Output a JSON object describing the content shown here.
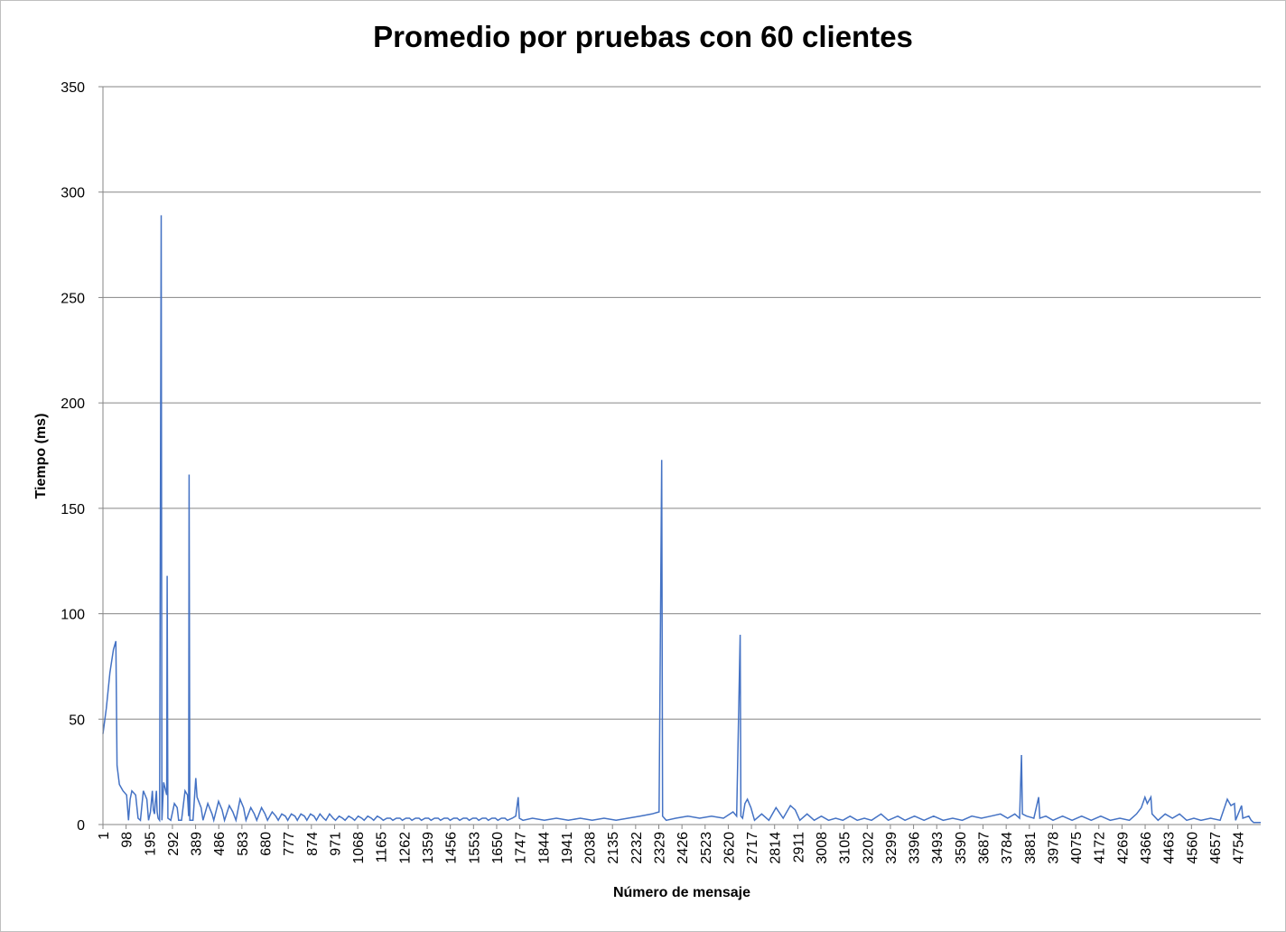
{
  "chart_data": {
    "type": "line",
    "title": "Promedio por pruebas con 60 clientes",
    "xlabel": "Número de mensaje",
    "ylabel": "Tiempo (ms)",
    "ylim": [
      0,
      350
    ],
    "xlim": [
      1,
      4850
    ],
    "y_ticks": [
      "0",
      "50",
      "100",
      "150",
      "200",
      "250",
      "300",
      "350"
    ],
    "x_ticks": [
      "1",
      "98",
      "195",
      "292",
      "389",
      "486",
      "583",
      "680",
      "777",
      "874",
      "971",
      "1068",
      "1165",
      "1262",
      "1359",
      "1456",
      "1553",
      "1650",
      "1747",
      "1844",
      "1941",
      "2038",
      "2135",
      "2232",
      "2329",
      "2426",
      "2523",
      "2620",
      "2717",
      "2814",
      "2911",
      "3008",
      "3105",
      "3202",
      "3299",
      "3396",
      "3493",
      "3590",
      "3687",
      "3784",
      "3881",
      "3978",
      "4075",
      "4172",
      "4269",
      "4366",
      "4463",
      "4560",
      "4657",
      "4754"
    ],
    "grid": true,
    "legend": "none",
    "series": [
      {
        "color": "#4472c4",
        "points": [
          [
            1,
            43
          ],
          [
            15,
            55
          ],
          [
            30,
            72
          ],
          [
            45,
            83
          ],
          [
            55,
            87
          ],
          [
            60,
            28
          ],
          [
            70,
            19
          ],
          [
            85,
            16
          ],
          [
            100,
            14
          ],
          [
            108,
            2
          ],
          [
            115,
            12
          ],
          [
            122,
            16
          ],
          [
            138,
            14
          ],
          [
            148,
            3
          ],
          [
            158,
            2
          ],
          [
            170,
            16
          ],
          [
            185,
            12
          ],
          [
            192,
            2
          ],
          [
            200,
            6
          ],
          [
            208,
            16
          ],
          [
            212,
            7
          ],
          [
            217,
            5
          ],
          [
            220,
            10
          ],
          [
            225,
            16
          ],
          [
            228,
            6
          ],
          [
            232,
            3
          ],
          [
            238,
            2
          ],
          [
            245,
            289
          ],
          [
            248,
            2
          ],
          [
            255,
            20
          ],
          [
            268,
            14
          ],
          [
            270,
            118
          ],
          [
            273,
            3
          ],
          [
            285,
            2
          ],
          [
            300,
            10
          ],
          [
            312,
            8
          ],
          [
            318,
            2
          ],
          [
            330,
            2
          ],
          [
            345,
            16
          ],
          [
            355,
            14
          ],
          [
            360,
            4
          ],
          [
            362,
            166
          ],
          [
            365,
            2
          ],
          [
            378,
            2
          ],
          [
            390,
            22
          ],
          [
            395,
            13
          ],
          [
            412,
            8
          ],
          [
            420,
            2
          ],
          [
            440,
            10
          ],
          [
            458,
            5
          ],
          [
            465,
            2
          ],
          [
            485,
            11
          ],
          [
            500,
            7
          ],
          [
            510,
            2
          ],
          [
            530,
            9
          ],
          [
            545,
            6
          ],
          [
            558,
            2
          ],
          [
            575,
            12
          ],
          [
            590,
            8
          ],
          [
            600,
            2
          ],
          [
            620,
            8
          ],
          [
            635,
            5
          ],
          [
            645,
            2
          ],
          [
            665,
            8
          ],
          [
            680,
            5
          ],
          [
            690,
            2
          ],
          [
            710,
            6
          ],
          [
            725,
            4
          ],
          [
            735,
            2
          ],
          [
            750,
            5
          ],
          [
            765,
            4
          ],
          [
            775,
            2
          ],
          [
            790,
            5
          ],
          [
            805,
            4
          ],
          [
            815,
            2
          ],
          [
            830,
            5
          ],
          [
            845,
            4
          ],
          [
            855,
            2
          ],
          [
            870,
            5
          ],
          [
            885,
            4
          ],
          [
            895,
            2
          ],
          [
            910,
            5
          ],
          [
            925,
            3
          ],
          [
            935,
            2
          ],
          [
            950,
            5
          ],
          [
            965,
            3
          ],
          [
            975,
            2
          ],
          [
            990,
            4
          ],
          [
            1005,
            3
          ],
          [
            1015,
            2
          ],
          [
            1030,
            4
          ],
          [
            1045,
            3
          ],
          [
            1055,
            2
          ],
          [
            1070,
            4
          ],
          [
            1085,
            3
          ],
          [
            1095,
            2
          ],
          [
            1110,
            4
          ],
          [
            1125,
            3
          ],
          [
            1135,
            2
          ],
          [
            1150,
            4
          ],
          [
            1165,
            3
          ],
          [
            1175,
            2
          ],
          [
            1190,
            3
          ],
          [
            1205,
            3
          ],
          [
            1215,
            2
          ],
          [
            1230,
            3
          ],
          [
            1245,
            3
          ],
          [
            1255,
            2
          ],
          [
            1270,
            3
          ],
          [
            1285,
            3
          ],
          [
            1295,
            2
          ],
          [
            1310,
            3
          ],
          [
            1325,
            3
          ],
          [
            1335,
            2
          ],
          [
            1350,
            3
          ],
          [
            1365,
            3
          ],
          [
            1375,
            2
          ],
          [
            1390,
            3
          ],
          [
            1405,
            3
          ],
          [
            1415,
            2
          ],
          [
            1430,
            3
          ],
          [
            1445,
            3
          ],
          [
            1455,
            2
          ],
          [
            1470,
            3
          ],
          [
            1485,
            3
          ],
          [
            1495,
            2
          ],
          [
            1510,
            3
          ],
          [
            1525,
            3
          ],
          [
            1535,
            2
          ],
          [
            1550,
            3
          ],
          [
            1565,
            3
          ],
          [
            1575,
            2
          ],
          [
            1590,
            3
          ],
          [
            1605,
            3
          ],
          [
            1615,
            2
          ],
          [
            1630,
            3
          ],
          [
            1645,
            3
          ],
          [
            1655,
            2
          ],
          [
            1670,
            3
          ],
          [
            1685,
            3
          ],
          [
            1695,
            2
          ],
          [
            1715,
            3
          ],
          [
            1730,
            4
          ],
          [
            1740,
            13
          ],
          [
            1745,
            3
          ],
          [
            1760,
            2
          ],
          [
            1800,
            3
          ],
          [
            1850,
            2
          ],
          [
            1900,
            3
          ],
          [
            1950,
            2
          ],
          [
            2000,
            3
          ],
          [
            2050,
            2
          ],
          [
            2100,
            3
          ],
          [
            2150,
            2
          ],
          [
            2200,
            3
          ],
          [
            2250,
            4
          ],
          [
            2300,
            5
          ],
          [
            2330,
            6
          ],
          [
            2341,
            173
          ],
          [
            2345,
            4
          ],
          [
            2360,
            2
          ],
          [
            2400,
            3
          ],
          [
            2450,
            4
          ],
          [
            2500,
            3
          ],
          [
            2550,
            4
          ],
          [
            2600,
            3
          ],
          [
            2640,
            6
          ],
          [
            2655,
            4
          ],
          [
            2670,
            90
          ],
          [
            2673,
            4
          ],
          [
            2680,
            3
          ],
          [
            2690,
            10
          ],
          [
            2700,
            12
          ],
          [
            2715,
            8
          ],
          [
            2730,
            2
          ],
          [
            2760,
            5
          ],
          [
            2790,
            2
          ],
          [
            2820,
            8
          ],
          [
            2850,
            3
          ],
          [
            2880,
            9
          ],
          [
            2900,
            7
          ],
          [
            2920,
            2
          ],
          [
            2950,
            5
          ],
          [
            2980,
            2
          ],
          [
            3010,
            4
          ],
          [
            3040,
            2
          ],
          [
            3070,
            3
          ],
          [
            3100,
            2
          ],
          [
            3130,
            4
          ],
          [
            3160,
            2
          ],
          [
            3190,
            3
          ],
          [
            3220,
            2
          ],
          [
            3260,
            5
          ],
          [
            3290,
            2
          ],
          [
            3330,
            4
          ],
          [
            3360,
            2
          ],
          [
            3400,
            4
          ],
          [
            3440,
            2
          ],
          [
            3480,
            4
          ],
          [
            3520,
            2
          ],
          [
            3560,
            3
          ],
          [
            3600,
            2
          ],
          [
            3640,
            4
          ],
          [
            3680,
            3
          ],
          [
            3720,
            4
          ],
          [
            3760,
            5
          ],
          [
            3790,
            3
          ],
          [
            3820,
            5
          ],
          [
            3840,
            3
          ],
          [
            3848,
            33
          ],
          [
            3852,
            5
          ],
          [
            3870,
            4
          ],
          [
            3900,
            3
          ],
          [
            3920,
            13
          ],
          [
            3925,
            3
          ],
          [
            3950,
            4
          ],
          [
            3980,
            2
          ],
          [
            4020,
            4
          ],
          [
            4060,
            2
          ],
          [
            4100,
            4
          ],
          [
            4140,
            2
          ],
          [
            4180,
            4
          ],
          [
            4220,
            2
          ],
          [
            4260,
            3
          ],
          [
            4300,
            2
          ],
          [
            4330,
            5
          ],
          [
            4350,
            8
          ],
          [
            4365,
            13
          ],
          [
            4375,
            10
          ],
          [
            4390,
            13
          ],
          [
            4395,
            5
          ],
          [
            4420,
            2
          ],
          [
            4450,
            5
          ],
          [
            4480,
            3
          ],
          [
            4510,
            5
          ],
          [
            4540,
            2
          ],
          [
            4570,
            3
          ],
          [
            4600,
            2
          ],
          [
            4640,
            3
          ],
          [
            4680,
            2
          ],
          [
            4710,
            12
          ],
          [
            4725,
            9
          ],
          [
            4740,
            10
          ],
          [
            4745,
            2
          ],
          [
            4770,
            9
          ],
          [
            4775,
            3
          ],
          [
            4800,
            4
          ],
          [
            4810,
            2
          ],
          [
            4820,
            1
          ],
          [
            4850,
            1
          ]
        ]
      }
    ]
  }
}
